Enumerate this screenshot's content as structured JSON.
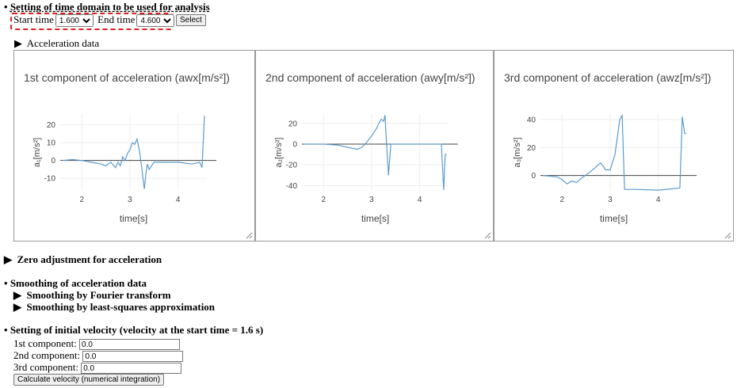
{
  "time_domain": {
    "heading": "Setting of time domain to be used for analysis",
    "start_label": "Start time",
    "start_value": "1.600",
    "end_label": "End time",
    "end_value": "4.600",
    "button": "Select"
  },
  "acceleration_data": {
    "summary": "Acceleration data"
  },
  "chart_data": [
    {
      "type": "line",
      "title": "1st component of acceleration (awx[m/s²])",
      "x_label": "time[s]",
      "y_label": "a₁[m/s²]",
      "color": "#5b9bd0",
      "grid": true,
      "zeroline": true,
      "x": [
        1.6,
        1.8,
        2.0,
        2.2,
        2.4,
        2.5,
        2.6,
        2.7,
        2.75,
        2.8,
        2.85,
        2.9,
        2.95,
        3.0,
        3.05,
        3.1,
        3.15,
        3.2,
        3.25,
        3.3,
        3.33,
        3.36,
        3.4,
        3.5,
        3.7,
        4.0,
        4.3,
        4.45,
        4.5,
        4.55
      ],
      "values": [
        0,
        0.5,
        0,
        -1,
        -2,
        -3,
        -1,
        -4,
        -1,
        -3,
        2,
        0,
        4,
        6,
        10,
        9,
        12,
        5,
        -5,
        -16,
        -8,
        -2,
        -5,
        -1,
        -1,
        -1,
        -2,
        -1,
        -4,
        25
      ],
      "xlim": [
        1.55,
        4.6
      ],
      "ylim": [
        -17,
        26
      ],
      "xticks": [
        2,
        3,
        4
      ],
      "yticks": [
        -10,
        0,
        10,
        20
      ]
    },
    {
      "type": "line",
      "title": "2nd component of acceleration (awy[m/s²])",
      "x_label": "time[s]",
      "y_label": "a₂[m/s²]",
      "color": "#5b9bd0",
      "grid": true,
      "zeroline": true,
      "x": [
        1.6,
        2.0,
        2.3,
        2.5,
        2.7,
        2.8,
        2.9,
        3.0,
        3.1,
        3.15,
        3.2,
        3.25,
        3.28,
        3.3,
        3.35,
        3.4,
        3.5,
        4.0,
        4.45,
        4.5,
        4.53,
        4.56
      ],
      "values": [
        0,
        0,
        -1,
        -3,
        -5,
        -3,
        2,
        8,
        15,
        20,
        24,
        22,
        28,
        10,
        -30,
        0,
        0,
        0,
        0,
        -44,
        -10,
        -10
      ],
      "xlim": [
        1.55,
        4.6
      ],
      "ylim": [
        -45,
        29
      ],
      "xticks": [
        2,
        3,
        4
      ],
      "yticks": [
        -40,
        -20,
        0,
        20
      ]
    },
    {
      "type": "line",
      "title": "3rd component of acceleration (awz[m/s²])",
      "x_label": "time[s]",
      "y_label": "a₃[m/s²]",
      "color": "#5b9bd0",
      "grid": true,
      "zeroline": true,
      "x": [
        1.6,
        1.9,
        2.0,
        2.1,
        2.2,
        2.3,
        2.4,
        2.6,
        2.7,
        2.8,
        2.85,
        2.9,
        3.0,
        3.1,
        3.2,
        3.25,
        3.3,
        3.5,
        4.0,
        4.45,
        4.5,
        4.55,
        4.58
      ],
      "values": [
        0,
        -1,
        -3,
        -6,
        -4,
        -5,
        -2,
        3,
        6,
        9,
        7,
        4,
        4,
        15,
        40,
        43,
        -10,
        -10,
        -10.5,
        -9,
        42,
        30,
        30
      ],
      "xlim": [
        1.55,
        4.6
      ],
      "ylim": [
        -11,
        44
      ],
      "xticks": [
        2,
        3,
        4
      ],
      "yticks": [
        0,
        20,
        40
      ]
    }
  ],
  "zero_adjustment": {
    "summary": "Zero adjustment for acceleration"
  },
  "smoothing": {
    "heading": "Smoothing of acceleration data",
    "items": [
      "Smoothing by Fourier transform",
      "Smoothing by least-squares approximation"
    ]
  },
  "initial_velocity": {
    "heading": "Setting of initial velocity (velocity at the start time = 1.6 s)",
    "fields": [
      {
        "label": "1st component:",
        "value": "0.0"
      },
      {
        "label": "2nd component:",
        "value": "0.0"
      },
      {
        "label": "3rd component:",
        "value": "0.0"
      }
    ],
    "button": "Calculate velocity (numerical integration)"
  }
}
